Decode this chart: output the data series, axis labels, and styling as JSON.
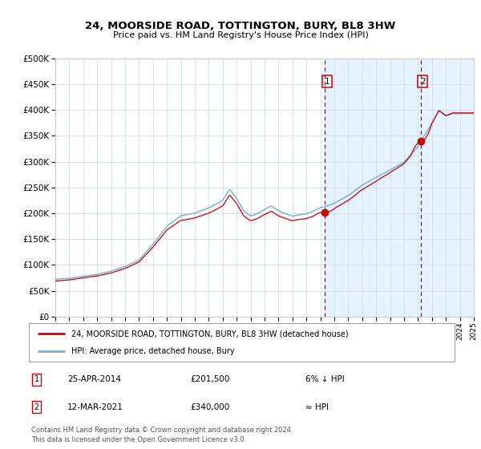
{
  "title": "24, MOORSIDE ROAD, TOTTINGTON, BURY, BL8 3HW",
  "subtitle": "Price paid vs. HM Land Registry's House Price Index (HPI)",
  "legend_label_red": "24, MOORSIDE ROAD, TOTTINGTON, BURY, BL8 3HW (detached house)",
  "legend_label_blue": "HPI: Average price, detached house, Bury",
  "note1_label": "1",
  "note1_date": "25-APR-2014",
  "note1_price": "£201,500",
  "note1_hpi": "6% ↓ HPI",
  "note2_label": "2",
  "note2_date": "12-MAR-2021",
  "note2_price": "£340,000",
  "note2_hpi": "≈ HPI",
  "footnote": "Contains HM Land Registry data © Crown copyright and database right 2024.\nThis data is licensed under the Open Government Licence v3.0.",
  "year_start": 1995,
  "year_end": 2025,
  "ylim_min": 0,
  "ylim_max": 500000,
  "yticks": [
    0,
    50000,
    100000,
    150000,
    200000,
    250000,
    300000,
    350000,
    400000,
    450000,
    500000
  ],
  "red_color": "#cc0000",
  "blue_color": "#7aadd4",
  "shade_color": "#ddeeff",
  "vline_color": "#cc0000",
  "background_color": "#ffffff",
  "point1_year": 2014.32,
  "point1_value": 201500,
  "point2_year": 2021.19,
  "point2_value": 340000,
  "hpi_keypoints": [
    [
      1995.0,
      72000
    ],
    [
      1996.0,
      74000
    ],
    [
      1997.0,
      78000
    ],
    [
      1998.0,
      82000
    ],
    [
      1999.0,
      88000
    ],
    [
      2000.0,
      97000
    ],
    [
      2001.0,
      110000
    ],
    [
      2002.0,
      140000
    ],
    [
      2003.0,
      175000
    ],
    [
      2004.0,
      195000
    ],
    [
      2005.0,
      200000
    ],
    [
      2006.0,
      210000
    ],
    [
      2007.0,
      225000
    ],
    [
      2007.5,
      248000
    ],
    [
      2008.0,
      230000
    ],
    [
      2008.5,
      205000
    ],
    [
      2009.0,
      195000
    ],
    [
      2009.5,
      200000
    ],
    [
      2010.0,
      208000
    ],
    [
      2010.5,
      215000
    ],
    [
      2011.0,
      205000
    ],
    [
      2011.5,
      200000
    ],
    [
      2012.0,
      195000
    ],
    [
      2012.5,
      198000
    ],
    [
      2013.0,
      200000
    ],
    [
      2013.5,
      205000
    ],
    [
      2014.0,
      212000
    ],
    [
      2014.32,
      213500
    ],
    [
      2015.0,
      220000
    ],
    [
      2016.0,
      235000
    ],
    [
      2017.0,
      255000
    ],
    [
      2018.0,
      270000
    ],
    [
      2019.0,
      285000
    ],
    [
      2020.0,
      300000
    ],
    [
      2021.0,
      330000
    ],
    [
      2021.19,
      340000
    ],
    [
      2022.0,
      375000
    ],
    [
      2022.5,
      400000
    ],
    [
      2023.0,
      390000
    ],
    [
      2023.5,
      395000
    ],
    [
      2024.0,
      395000
    ],
    [
      2025.0,
      395000
    ]
  ]
}
